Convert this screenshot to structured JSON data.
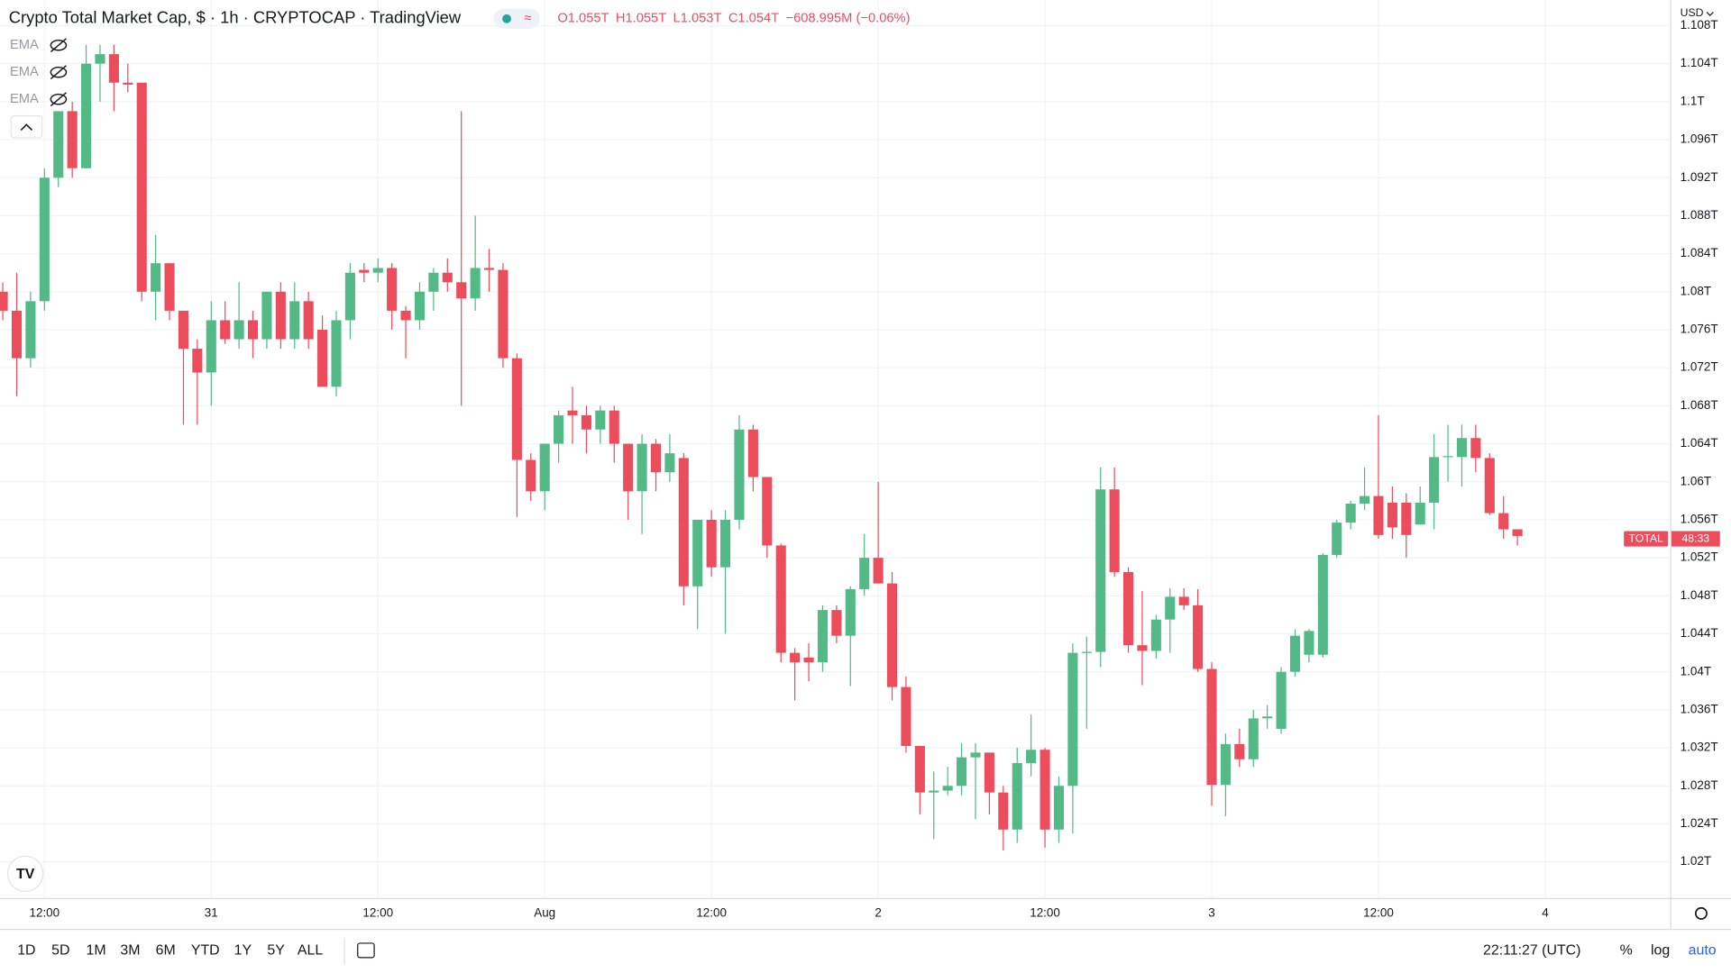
{
  "chart_data": {
    "type": "candlestick",
    "title": "Crypto Total Market Cap, $ · 1h · CRYPTOCAP · TradingView",
    "legend": [
      "O1.055T",
      "H1.055T",
      "L1.053T",
      "C1.054T",
      "−608.995M (−0.06%)"
    ],
    "indicators": [
      "EMA",
      "EMA",
      "EMA"
    ],
    "currency": "USD",
    "up_color": "#53b987",
    "down_color": "#eb4d5c",
    "grid": true,
    "open": [
      1.08,
      1.078,
      1.073,
      1.079,
      1.092,
      1.099,
      1.093,
      1.104,
      1.105,
      1.102,
      1.102,
      1.08,
      1.083,
      1.078,
      1.074,
      1.0715,
      1.077,
      1.075,
      1.077,
      1.075,
      1.08,
      1.075,
      1.079,
      1.076,
      1.07,
      1.077,
      1.0823,
      1.082,
      1.0825,
      1.078,
      1.077,
      1.08,
      1.082,
      1.081,
      1.0793,
      1.0825,
      1.0823,
      1.073,
      1.0623,
      1.059,
      1.064,
      1.0675,
      1.067,
      1.0655,
      1.0675,
      1.064,
      1.059,
      1.064,
      1.061,
      1.0625,
      1.049,
      1.056,
      1.051,
      1.056,
      1.0655,
      1.0605,
      1.0533,
      1.042,
      1.0415,
      1.041,
      1.0465,
      1.0438,
      1.0487,
      1.052,
      1.0493,
      1.0384,
      1.0322,
      1.0273,
      1.0275,
      1.028,
      1.031,
      1.0315,
      1.0273,
      1.0234,
      1.0304,
      1.0318,
      1.0234,
      1.028,
      1.042,
      1.0421,
      1.0592,
      1.0505,
      1.0428,
      1.0422,
      1.0455,
      1.0479,
      1.047,
      1.0403,
      1.0281,
      1.0324,
      1.0308,
      1.0351,
      1.034,
      1.04,
      1.0418,
      1.0418,
      1.0523,
      1.0557,
      1.0577,
      1.0585,
      1.0578,
      1.0578,
      1.0555,
      1.0578,
      1.0626,
      1.0626,
      1.0646,
      1.0625,
      1.0567,
      1.055
    ],
    "high": [
      1.081,
      1.082,
      1.08,
      1.093,
      1.099,
      1.1,
      1.106,
      1.106,
      1.106,
      1.104,
      1.102,
      1.086,
      1.083,
      1.078,
      1.075,
      1.079,
      1.079,
      1.081,
      1.078,
      1.08,
      1.081,
      1.081,
      1.08,
      1.0775,
      1.078,
      1.083,
      1.083,
      1.0835,
      1.083,
      1.0785,
      1.081,
      1.0825,
      1.0835,
      1.099,
      1.088,
      1.0845,
      1.083,
      1.0735,
      1.063,
      1.064,
      1.0675,
      1.07,
      1.068,
      1.068,
      1.068,
      1.064,
      1.065,
      1.0645,
      1.065,
      1.063,
      1.056,
      1.057,
      1.057,
      1.067,
      1.066,
      1.0605,
      1.0535,
      1.0425,
      1.043,
      1.047,
      1.047,
      1.049,
      1.0545,
      1.06,
      1.0505,
      1.0395,
      1.0322,
      1.0295,
      1.03,
      1.0325,
      1.0325,
      1.0315,
      1.028,
      1.032,
      1.0355,
      1.032,
      1.029,
      1.043,
      1.0437,
      1.0615,
      1.0615,
      1.051,
      1.0485,
      1.046,
      1.0488,
      1.0488,
      1.0487,
      1.041,
      1.0335,
      1.034,
      1.036,
      1.0365,
      1.0405,
      1.0445,
      1.0445,
      1.0525,
      1.056,
      1.058,
      1.0615,
      1.067,
      1.0595,
      1.0588,
      1.0595,
      1.065,
      1.066,
      1.066,
      1.066,
      1.063,
      1.0585,
      1.055
    ],
    "low": [
      1.077,
      1.069,
      1.072,
      1.078,
      1.091,
      1.092,
      1.093,
      1.1,
      1.099,
      1.101,
      1.079,
      1.077,
      1.077,
      1.066,
      1.066,
      1.068,
      1.0745,
      1.074,
      1.073,
      1.074,
      1.074,
      1.074,
      1.074,
      1.07,
      1.069,
      1.075,
      1.081,
      1.081,
      1.076,
      1.073,
      1.076,
      1.078,
      1.08,
      1.068,
      1.078,
      1.08,
      1.072,
      1.0563,
      1.058,
      1.057,
      1.062,
      1.064,
      1.063,
      1.064,
      1.062,
      1.056,
      1.0545,
      1.059,
      1.06,
      1.047,
      1.0445,
      1.05,
      1.044,
      1.055,
      1.059,
      1.052,
      1.041,
      1.037,
      1.039,
      1.04,
      1.043,
      1.0385,
      1.048,
      1.0493,
      1.037,
      1.0315,
      1.025,
      1.0224,
      1.027,
      1.027,
      1.0245,
      1.025,
      1.0212,
      1.022,
      1.029,
      1.0215,
      1.022,
      1.023,
      1.034,
      1.0405,
      1.05,
      1.042,
      1.0386,
      1.0414,
      1.042,
      1.0465,
      1.04,
      1.0259,
      1.0248,
      1.03,
      1.03,
      1.034,
      1.0335,
      1.0395,
      1.041,
      1.0415,
      1.052,
      1.055,
      1.057,
      1.054,
      1.054,
      1.052,
      1.0555,
      1.055,
      1.06,
      1.0595,
      1.061,
      1.0565,
      1.054,
      1.0533
    ],
    "close": [
      1.078,
      1.073,
      1.079,
      1.092,
      1.099,
      1.093,
      1.104,
      1.105,
      1.102,
      1.1018,
      1.08,
      1.083,
      1.078,
      1.074,
      1.0715,
      1.077,
      1.075,
      1.077,
      1.075,
      1.08,
      1.075,
      1.079,
      1.075,
      1.07,
      1.077,
      1.082,
      1.082,
      1.0825,
      1.078,
      1.077,
      1.08,
      1.082,
      1.081,
      1.0793,
      1.0825,
      1.0823,
      1.073,
      1.0623,
      1.059,
      1.064,
      1.067,
      1.067,
      1.0655,
      1.0675,
      1.064,
      1.059,
      1.064,
      1.061,
      1.063,
      1.049,
      1.056,
      1.051,
      1.056,
      1.0655,
      1.0605,
      1.0533,
      1.042,
      1.041,
      1.041,
      1.0465,
      1.0438,
      1.0487,
      1.052,
      1.0493,
      1.0384,
      1.0322,
      1.0273,
      1.0275,
      1.028,
      1.031,
      1.0315,
      1.0273,
      1.0234,
      1.0304,
      1.0318,
      1.0234,
      1.028,
      1.042,
      1.0421,
      1.0592,
      1.0505,
      1.0428,
      1.0422,
      1.0455,
      1.0479,
      1.047,
      1.0403,
      1.0281,
      1.0324,
      1.0308,
      1.0351,
      1.0353,
      1.04,
      1.0438,
      1.0443,
      1.0523,
      1.0557,
      1.0577,
      1.0585,
      1.0544,
      1.0552,
      1.0544,
      1.0578,
      1.0626,
      1.0627,
      1.0646,
      1.0625,
      1.0567,
      1.055,
      1.0543
    ],
    "xlim": [
      -0.2,
      120
    ],
    "xticks": [
      {
        "value": 3,
        "label": "12:00"
      },
      {
        "value": 15,
        "label": "31"
      },
      {
        "value": 27,
        "label": "12:00"
      },
      {
        "value": 39,
        "label": "Aug"
      },
      {
        "value": 51,
        "label": "12:00"
      },
      {
        "value": 63,
        "label": "2"
      },
      {
        "value": 75,
        "label": "12:00"
      },
      {
        "value": 87,
        "label": "3"
      },
      {
        "value": 99,
        "label": "12:00"
      },
      {
        "value": 111,
        "label": "4"
      }
    ],
    "ylim": [
      1.0162,
      1.1107
    ],
    "yticks": [
      {
        "value": 1.02,
        "label": "1.02T"
      },
      {
        "value": 1.024,
        "label": "1.024T"
      },
      {
        "value": 1.028,
        "label": "1.028T"
      },
      {
        "value": 1.032,
        "label": "1.032T"
      },
      {
        "value": 1.036,
        "label": "1.036T"
      },
      {
        "value": 1.04,
        "label": "1.04T"
      },
      {
        "value": 1.044,
        "label": "1.044T"
      },
      {
        "value": 1.048,
        "label": "1.048T"
      },
      {
        "value": 1.052,
        "label": "1.052T"
      },
      {
        "value": 1.056,
        "label": "1.056T"
      },
      {
        "value": 1.06,
        "label": "1.06T"
      },
      {
        "value": 1.064,
        "label": "1.064T"
      },
      {
        "value": 1.068,
        "label": "1.068T"
      },
      {
        "value": 1.072,
        "label": "1.072T"
      },
      {
        "value": 1.076,
        "label": "1.076T"
      },
      {
        "value": 1.08,
        "label": "1.08T"
      },
      {
        "value": 1.084,
        "label": "1.084T"
      },
      {
        "value": 1.088,
        "label": "1.088T"
      },
      {
        "value": 1.092,
        "label": "1.092T"
      },
      {
        "value": 1.096,
        "label": "1.096T"
      },
      {
        "value": 1.1,
        "label": "1.1T"
      },
      {
        "value": 1.104,
        "label": "1.104T"
      },
      {
        "value": 1.108,
        "label": "1.108T"
      }
    ],
    "last_price": {
      "value": 1.054,
      "name": "TOTAL",
      "countdown": "48:33"
    }
  },
  "toolbar": {
    "ranges": [
      "1D",
      "5D",
      "1M",
      "3M",
      "6M",
      "YTD",
      "1Y",
      "5Y",
      "ALL"
    ],
    "clock": "22:11:27 (UTC)",
    "options": [
      "%",
      "log",
      "auto"
    ]
  }
}
